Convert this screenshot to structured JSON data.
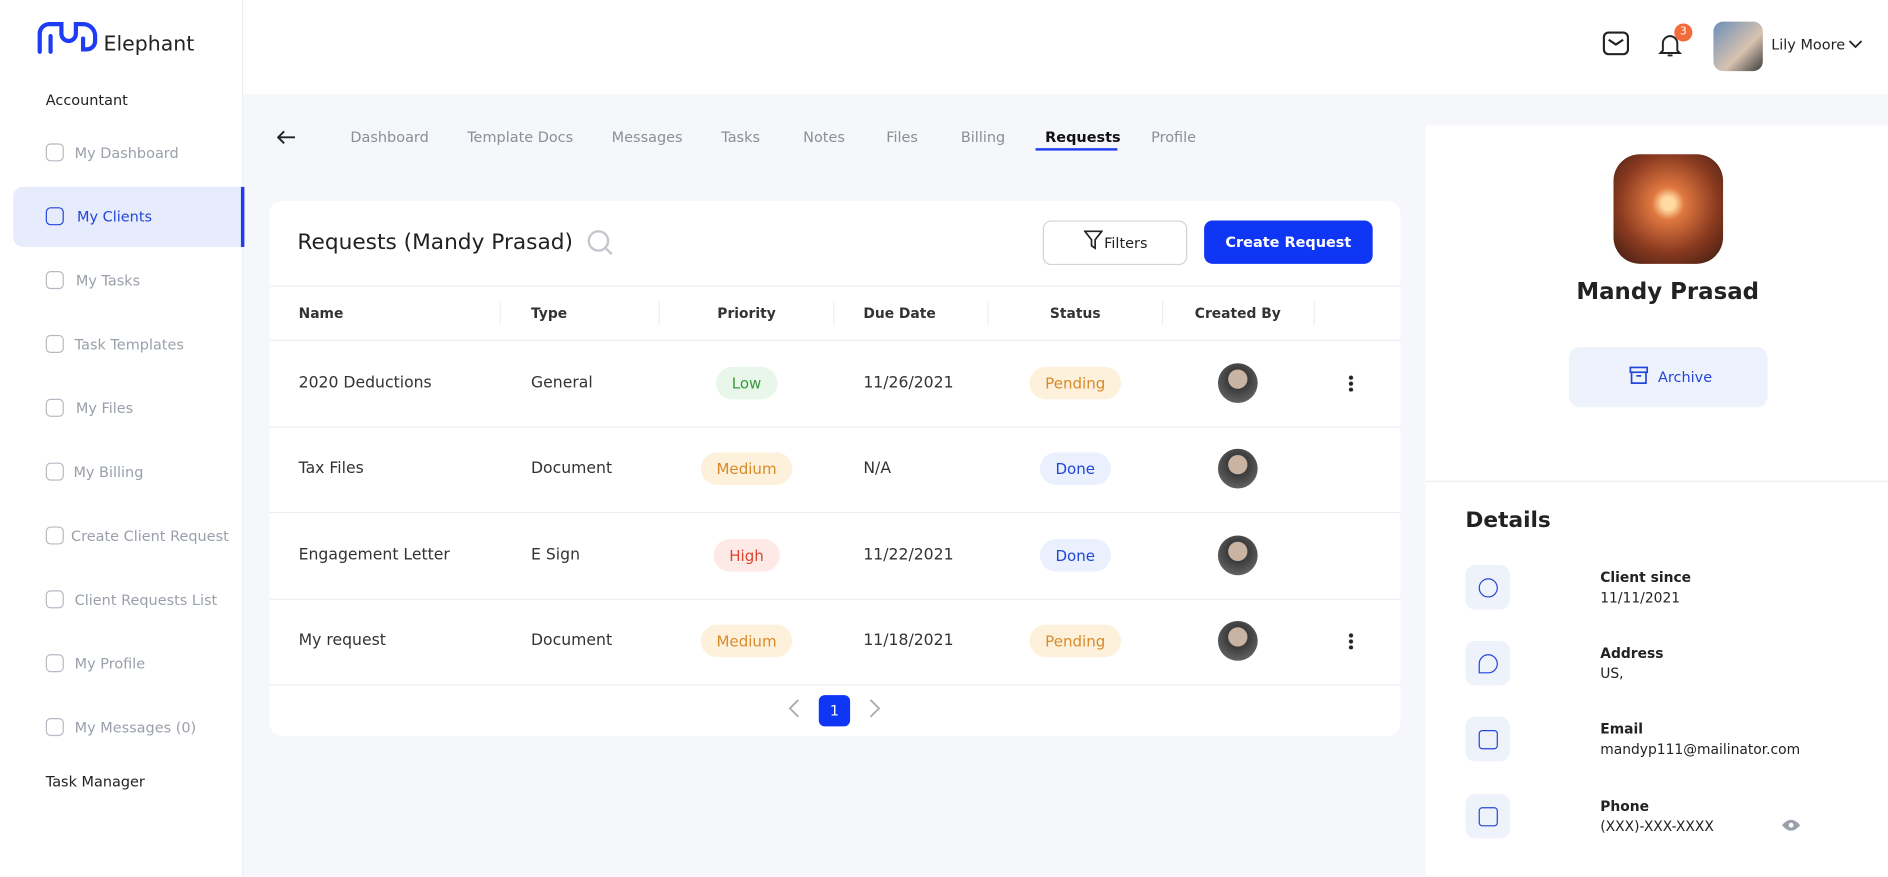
{
  "brand": "Elephant",
  "header": {
    "user_name": "Lily Moore",
    "notification_count": 3
  },
  "sidebar": {
    "section": "Accountant",
    "items": [
      "My Dashboard",
      "My Clients",
      "My Tasks",
      "Task Templates",
      "My Files",
      "My Billing",
      "Create Client Request",
      "Client Requests List",
      "My Profile",
      "My Messages (0)"
    ],
    "footer_section": "Task Manager"
  },
  "tabs": [
    "Dashboard",
    "Template Docs",
    "Messages",
    "Tasks",
    "Notes",
    "Files",
    "Billing",
    "Requests",
    "Profile"
  ],
  "requests": {
    "title": "Requests (Mandy Prasad)",
    "filters": "Filters",
    "create": "Create Request",
    "columns": [
      "Name",
      "Type",
      "Priority",
      "Due Date",
      "Status",
      "Created By"
    ],
    "rows": [
      [
        "2020 Deductions",
        "General",
        "Low",
        "11/26/2021",
        "Pending"
      ],
      [
        "Tax Files",
        "Document",
        "Medium",
        "N/A",
        "Done"
      ],
      [
        "Engagement Letter",
        "E Sign",
        "High",
        "11/22/2021",
        "Done"
      ],
      [
        "My request",
        "Document",
        "Medium",
        "11/18/2021",
        "Pending"
      ]
    ],
    "page": 1
  },
  "profile": {
    "name": "Mandy Prasad",
    "archive": "Archive",
    "details_title": "Details",
    "fields": [
      {
        "label": "Client since",
        "value": "11/11/2021"
      },
      {
        "label": "Address",
        "value": "US,"
      },
      {
        "label": "Email",
        "value": "mandyp111@mailinator.com"
      },
      {
        "label": "Phone",
        "value": "(XXX)-XXX-XXXX"
      }
    ]
  }
}
